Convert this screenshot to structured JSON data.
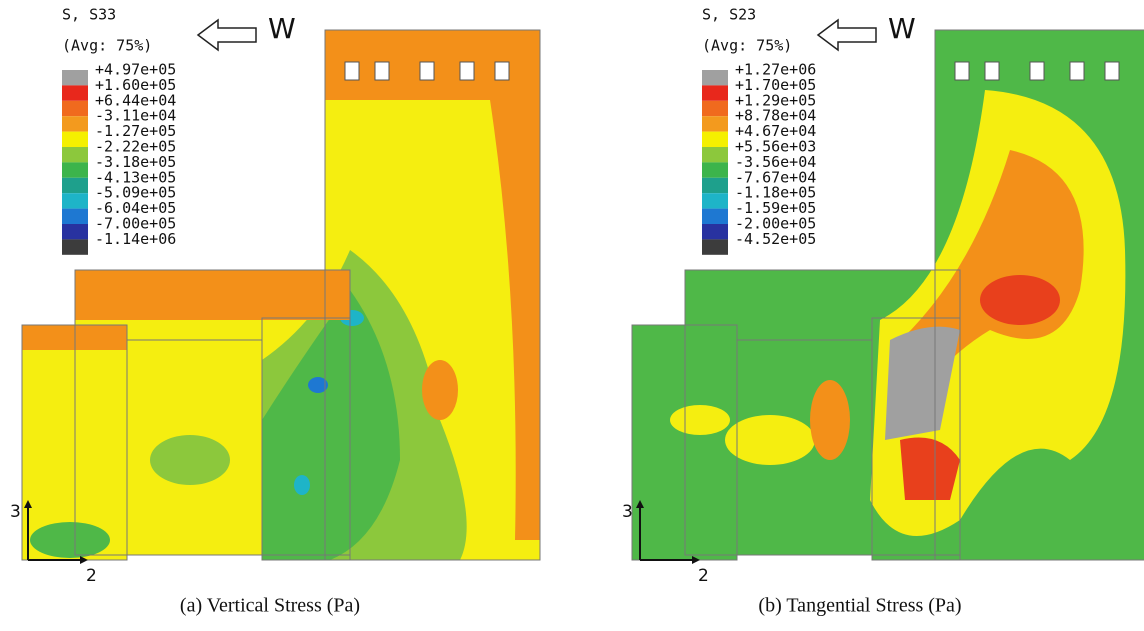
{
  "panels": [
    {
      "legend": {
        "title": "S, S33",
        "subtitle": "(Avg: 75%)",
        "labels": [
          "+4.97e+05",
          "+1.60e+05",
          "+6.44e+04",
          "-3.11e+04",
          "-1.27e+05",
          "-2.22e+05",
          "-3.18e+05",
          "-4.13e+05",
          "-5.09e+05",
          "-6.04e+05",
          "-7.00e+05",
          "-1.14e+06"
        ]
      },
      "direction": "W",
      "axis_vertical": "3",
      "axis_horizontal": "2",
      "caption": "(a)  Vertical Stress (Pa)"
    },
    {
      "legend": {
        "title": "S, S23",
        "subtitle": "(Avg: 75%)",
        "labels": [
          "+1.27e+06",
          "+1.70e+05",
          "+1.29e+05",
          "+8.78e+04",
          "+4.67e+04",
          "+5.56e+03",
          "-3.56e+04",
          "-7.67e+04",
          "-1.18e+05",
          "-1.59e+05",
          "-2.00e+05",
          "-4.52e+05"
        ]
      },
      "direction": "W",
      "axis_vertical": "3",
      "axis_horizontal": "2",
      "caption": "(b)  Tangential Stress (Pa)"
    }
  ]
}
